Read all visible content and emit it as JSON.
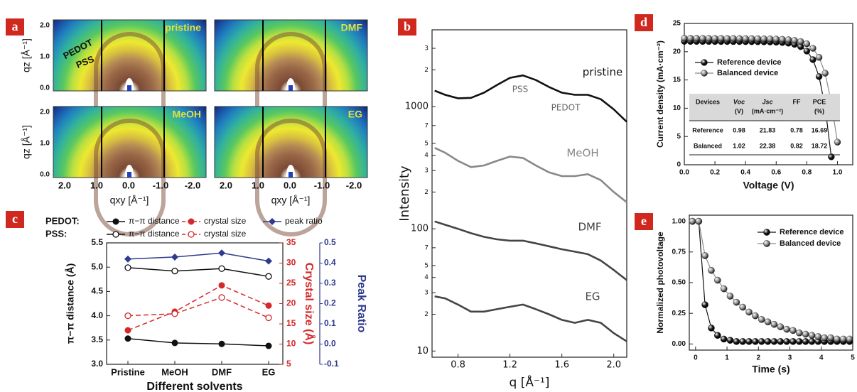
{
  "panel_a": {
    "panel_label": "a",
    "images": [
      "pristine",
      "DMF",
      "MeOH",
      "EG"
    ],
    "annotations": [
      "PEDOT",
      "PSS"
    ],
    "y_label": "qz [Å⁻¹]",
    "y_ticks": [
      "0.0",
      "1.0",
      "2.0"
    ],
    "x_ticks": [
      "2.0",
      "1.0",
      "0.0",
      "-1.0",
      "-2.0"
    ],
    "x_label": "qxy [Å⁻¹]"
  },
  "chart_data": [
    {
      "type": "line",
      "panel_label": "b",
      "xlabel": "q [Å⁻¹]",
      "ylabel": "Intensity",
      "xlim": [
        0.6,
        2.1
      ],
      "xticks": [
        0.8,
        1.2,
        1.6,
        {
          "value": 2.0,
          "label": "2.0"
        }
      ],
      "ylim": [
        8.9,
        4250
      ],
      "log_y": true,
      "yticks": [
        10,
        {
          "value": 20,
          "label": "2"
        },
        {
          "value": 30,
          "label": "3"
        },
        {
          "value": 40,
          "label": "4"
        },
        {
          "value": 50,
          "label": "5"
        },
        {
          "value": 70,
          "label": "7"
        },
        100,
        {
          "value": 200,
          "label": "2"
        },
        {
          "value": 300,
          "label": "3"
        },
        {
          "value": 400,
          "label": "4"
        },
        {
          "value": 500,
          "label": "5"
        },
        {
          "value": 700,
          "label": "7"
        },
        1000,
        {
          "value": 2000,
          "label": "2"
        },
        {
          "value": 3000,
          "label": "3"
        }
      ],
      "x": [
        0.62,
        0.7,
        0.8,
        0.9,
        1.0,
        1.1,
        1.2,
        1.3,
        1.4,
        1.5,
        1.6,
        1.7,
        1.8,
        1.9,
        2.0,
        2.1
      ],
      "series": [
        {
          "name": "pristine",
          "color": "#111111",
          "values": [
            1350,
            1250,
            1170,
            1180,
            1300,
            1500,
            1720,
            1800,
            1650,
            1450,
            1300,
            1250,
            1250,
            1150,
            950,
            750
          ]
        },
        {
          "name": "MeOH",
          "color": "#888888",
          "values": [
            460,
            420,
            360,
            320,
            330,
            360,
            390,
            380,
            330,
            290,
            270,
            270,
            280,
            250,
            200,
            165
          ]
        },
        {
          "name": "DMF",
          "color": "#444444",
          "values": [
            115,
            108,
            100,
            92,
            86,
            82,
            80,
            80,
            76,
            72,
            68,
            65,
            62,
            55,
            46,
            38
          ]
        },
        {
          "name": "EG",
          "color": "#444444",
          "values": [
            28,
            27,
            24,
            21,
            21,
            22,
            23,
            24,
            22,
            20,
            18,
            17,
            18,
            17,
            14,
            12
          ]
        }
      ],
      "annotations": [
        "PSS",
        "PEDOT"
      ]
    },
    {
      "type": "line",
      "panel_label": "c",
      "xlabel": "Different solvents",
      "ylabel": "π−π distance (Å)",
      "y2label": "Crystal size (Å)",
      "y3label": "Peak Ratio",
      "categories": [
        "Pristine",
        "MeOH",
        "DMF",
        "EG"
      ],
      "ylim": [
        3.0,
        5.5
      ],
      "yticks": [
        {
          "value": 3,
          "label": "3.0"
        },
        3.5,
        {
          "value": 4,
          "label": "4.0"
        },
        4.5,
        {
          "value": 5,
          "label": "5.0"
        },
        5.5
      ],
      "y2lim": [
        5,
        35
      ],
      "y2ticks": [
        5,
        10,
        15,
        20,
        25,
        30,
        35
      ],
      "y2color": "#d42a2a",
      "y3lim": [
        -0.1,
        0.5
      ],
      "y3ticks": [
        -0.1,
        {
          "value": 0,
          "label": "0.0"
        },
        0.1,
        0.2,
        0.3,
        0.4,
        0.5
      ],
      "y3color": "#2f3a8f",
      "legend_row_labels": [
        "PEDOT:",
        "PSS:"
      ],
      "series": [
        {
          "name": "π−π distance",
          "color": "#111111",
          "marker": "filled",
          "values": [
            3.53,
            3.44,
            3.42,
            3.38
          ]
        },
        {
          "name": "π−π distance",
          "color": "#111111",
          "marker": "open",
          "values": [
            4.99,
            4.92,
            4.97,
            4.81
          ]
        },
        {
          "name": "crystal size",
          "color": "#d42a2a",
          "marker": "filled",
          "dash": true,
          "axis": "y2",
          "values": [
            13.4,
            18,
            24.5,
            19.5
          ]
        },
        {
          "name": "crystal size",
          "color": "#d42a2a",
          "marker": "open",
          "dash": true,
          "axis": "y2",
          "values": [
            17,
            17.5,
            21.5,
            16.5
          ]
        },
        {
          "name": "peak ratio",
          "color": "#2f3a8f",
          "marker": "diamond",
          "axis": "y3",
          "values": [
            0.42,
            0.43,
            0.45,
            0.41
          ]
        }
      ]
    },
    {
      "type": "line",
      "panel_label": "d",
      "xlabel": "Voltage (V)",
      "ylabel": "Current density (mA·cm⁻²)",
      "xlim": [
        0,
        1.1
      ],
      "xticks": [
        {
          "value": 0,
          "label": "0.0"
        },
        0.2,
        0.4,
        0.6,
        0.8,
        {
          "value": 1,
          "label": "1.0"
        }
      ],
      "ylim": [
        0,
        25
      ],
      "yticks": [
        0,
        5,
        10,
        15,
        20,
        25
      ],
      "marker": "sphere",
      "series": [
        {
          "name": "Reference device",
          "color": "#111111",
          "x": [
            0,
            0.04,
            0.08,
            0.12,
            0.16,
            0.2,
            0.24,
            0.28,
            0.32,
            0.36,
            0.4,
            0.44,
            0.48,
            0.52,
            0.56,
            0.6,
            0.64,
            0.68,
            0.72,
            0.76,
            0.8,
            0.84,
            0.88,
            0.92,
            0.96
          ],
          "values": [
            21.83,
            21.82,
            21.82,
            21.81,
            21.81,
            21.8,
            21.8,
            21.8,
            21.79,
            21.79,
            21.78,
            21.77,
            21.76,
            21.74,
            21.72,
            21.68,
            21.62,
            21.5,
            21.3,
            20.9,
            20.1,
            18.6,
            15.6,
            10.2,
            1.4
          ]
        },
        {
          "name": "Balanced device",
          "color": "#8a8a8a",
          "x": [
            0,
            0.04,
            0.08,
            0.12,
            0.16,
            0.2,
            0.24,
            0.28,
            0.32,
            0.36,
            0.4,
            0.44,
            0.48,
            0.52,
            0.56,
            0.6,
            0.64,
            0.68,
            0.72,
            0.76,
            0.8,
            0.84,
            0.88,
            0.92,
            0.96,
            1.0
          ],
          "values": [
            22.38,
            22.37,
            22.37,
            22.36,
            22.36,
            22.35,
            22.35,
            22.34,
            22.34,
            22.33,
            22.32,
            22.31,
            22.3,
            22.28,
            22.26,
            22.23,
            22.19,
            22.12,
            22.0,
            21.8,
            21.4,
            20.6,
            19.0,
            16.2,
            11.0,
            4.0
          ]
        }
      ],
      "table": {
        "header": [
          [
            "Devices"
          ],
          [
            "Voc",
            "(V)"
          ],
          [
            "Jsc",
            "(mA·cm⁻²)"
          ],
          [
            "FF"
          ],
          [
            "PCE",
            "(%)"
          ]
        ],
        "rows": [
          [
            "Reference",
            0.98,
            21.83,
            0.78,
            16.69
          ],
          [
            "Balanced",
            1.02,
            22.38,
            0.82,
            18.72
          ]
        ]
      }
    },
    {
      "type": "line",
      "panel_label": "e",
      "xlabel": "Time (s)",
      "ylabel": "Normalized photovoltage",
      "xlim": [
        -0.2,
        5
      ],
      "xticks": [
        0,
        1,
        2,
        3,
        4,
        5
      ],
      "ylim": [
        -0.05,
        1.05
      ],
      "yticks": [
        {
          "value": 0,
          "label": "0.00"
        },
        {
          "value": 0.25,
          "label": "0.25"
        },
        {
          "value": 0.5,
          "label": "0.50"
        },
        {
          "value": 0.75,
          "label": "0.75"
        },
        {
          "value": 1,
          "label": "1.00"
        }
      ],
      "marker": "sphere",
      "x": [
        -0.1,
        0.1,
        0.3,
        0.5,
        0.7,
        0.9,
        1.1,
        1.3,
        1.5,
        1.7,
        1.9,
        2.1,
        2.3,
        2.5,
        2.7,
        2.9,
        3.1,
        3.3,
        3.5,
        3.7,
        3.9,
        4.1,
        4.3,
        4.5,
        4.7,
        4.9
      ],
      "series": [
        {
          "name": "Reference device",
          "color": "#111111",
          "values": [
            1,
            1,
            0.32,
            0.13,
            0.07,
            0.04,
            0.03,
            0.02,
            0.02,
            0.02,
            0.02,
            0.02,
            0.02,
            0.02,
            0.02,
            0.02,
            0.02,
            0.02,
            0.02,
            0.02,
            0.02,
            0.02,
            0.02,
            0.02,
            0.02,
            0.02
          ]
        },
        {
          "name": "Balanced device",
          "color": "#8a8a8a",
          "values": [
            1,
            1,
            0.72,
            0.6,
            0.52,
            0.45,
            0.39,
            0.34,
            0.3,
            0.26,
            0.23,
            0.2,
            0.18,
            0.16,
            0.14,
            0.12,
            0.11,
            0.09,
            0.08,
            0.07,
            0.06,
            0.05,
            0.05,
            0.04,
            0.04,
            0.04
          ]
        }
      ]
    }
  ]
}
